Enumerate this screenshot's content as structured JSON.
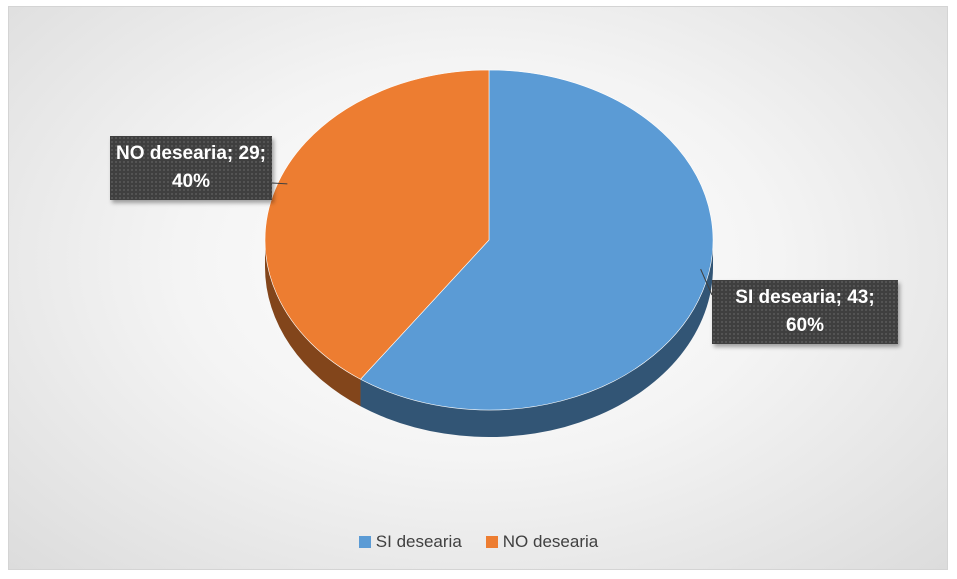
{
  "chart_data": {
    "type": "pie3d",
    "categories": [
      "SI desearia",
      "NO desearia"
    ],
    "values": [
      43,
      29
    ],
    "value_labels": [
      "SI desearia; 43; 60%",
      "NO desearia; 29; 40%"
    ],
    "colors": [
      "#5b9bd5",
      "#ed7d31"
    ],
    "legend": "bottom"
  }
}
